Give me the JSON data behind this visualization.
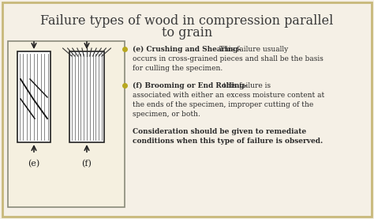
{
  "title_line1": "Failure types of wood in compression parallel",
  "title_line2": "to grain",
  "title_fontsize": 11.5,
  "title_color": "#3a3a3a",
  "bg_color": "#f5f0e6",
  "border_color": "#c8b87a",
  "box_bg": "#f5f0e0",
  "box_border": "#8a8a7a",
  "bullet_color": "#b8a820",
  "text_color": "#2a2a2a",
  "bullet1_bold": "(e) Crushing and Shearing-",
  "bullet1_normal": " This failure usually occurs in cross-grained pieces and shall be the basis for culling the specimen.",
  "bullet2_bold": "(f) Brooming or End Rolling-",
  "bullet2_normal": " this failure is associated with either an excess moisture content at the ends of the specimen, improper cutting of the specimen, or both.",
  "note_bold": "Consideration should be given to remediate conditions when this type of failure is observed.",
  "label_e": "(e)",
  "label_f": "(f)",
  "font_family": "serif"
}
